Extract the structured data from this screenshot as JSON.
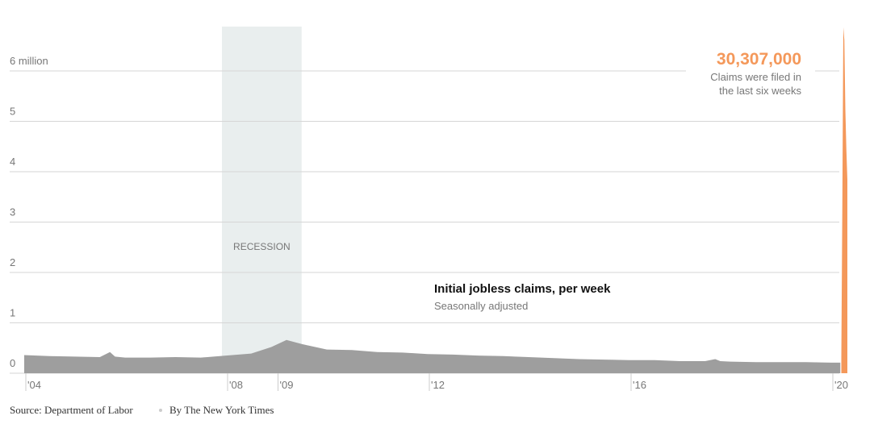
{
  "chart_data": {
    "type": "area",
    "title": "Initial jobless claims, per week",
    "subtitle": "Seasonally adjusted",
    "xlim": [
      2004,
      2020.35
    ],
    "xticks": [
      {
        "value": 2004,
        "label": "'04"
      },
      {
        "value": 2008,
        "label": "'08"
      },
      {
        "value": 2009,
        "label": "'09"
      },
      {
        "value": 2012,
        "label": "'12"
      },
      {
        "value": 2016,
        "label": "'16"
      },
      {
        "value": 2020,
        "label": "'20"
      }
    ],
    "ylim": [
      0,
      6.9
    ],
    "yticks": [
      0,
      1,
      2,
      3,
      4,
      5,
      {
        "value": 6,
        "label": "6 million"
      }
    ],
    "grid": true,
    "recession": {
      "label": "RECESSION",
      "start": 2007.92,
      "end": 2009.5
    },
    "series": [
      {
        "color": "#9e9e9e",
        "x": [
          2004,
          2004.5,
          2005,
          2005.5,
          2005.7,
          2005.8,
          2006,
          2006.5,
          2007,
          2007.5,
          2008,
          2008.5,
          2008.9,
          2009.2,
          2009.5,
          2010,
          2010.5,
          2011,
          2011.5,
          2012,
          2012.5,
          2013,
          2013.5,
          2014,
          2014.5,
          2015,
          2015.5,
          2016,
          2016.5,
          2017,
          2017.5,
          2017.7,
          2017.8,
          2018,
          2018.5,
          2019,
          2019.5,
          2020,
          2020.18
        ],
        "values": [
          0.36,
          0.34,
          0.33,
          0.32,
          0.42,
          0.33,
          0.31,
          0.31,
          0.32,
          0.31,
          0.35,
          0.39,
          0.52,
          0.66,
          0.58,
          0.47,
          0.46,
          0.42,
          0.41,
          0.38,
          0.37,
          0.35,
          0.34,
          0.32,
          0.3,
          0.28,
          0.27,
          0.26,
          0.26,
          0.24,
          0.24,
          0.28,
          0.24,
          0.23,
          0.22,
          0.22,
          0.22,
          0.21,
          0.21
        ]
      },
      {
        "color": "#f4985a",
        "x": [
          2020.2,
          2020.22,
          2020.24,
          2020.26,
          2020.28,
          2020.3,
          2020.32
        ],
        "values": [
          0.282,
          3.307,
          6.867,
          6.615,
          5.237,
          4.442,
          3.839
        ]
      }
    ],
    "annotation": {
      "headline": "30,307,000",
      "lines": [
        "Claims were filed in",
        "the last six weeks"
      ]
    },
    "source": "Source: Department of Labor",
    "byline": "By The New York Times"
  }
}
